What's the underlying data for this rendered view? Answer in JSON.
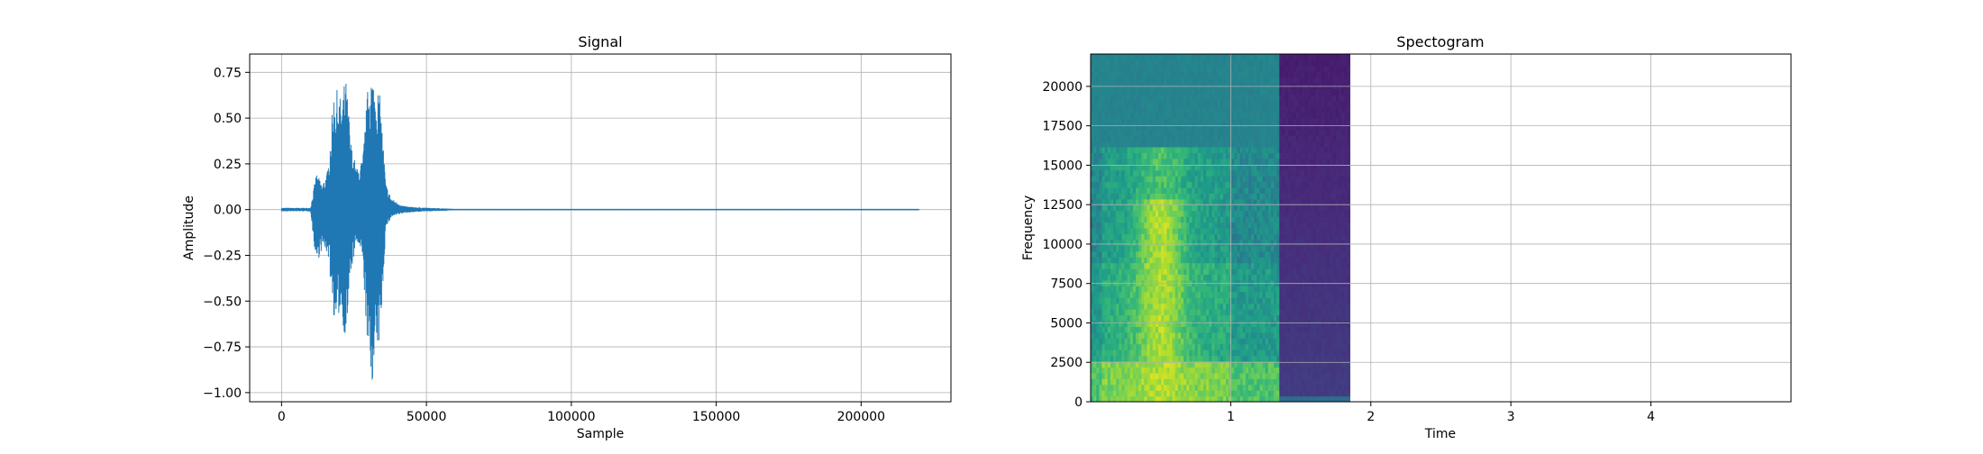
{
  "chart_data": [
    {
      "type": "line",
      "title": "Signal",
      "xlabel": "Sample",
      "ylabel": "Amplitude",
      "xlim": [
        -11000,
        231000
      ],
      "ylim": [
        -1.05,
        0.85
      ],
      "grid": true,
      "xticks": [
        0,
        50000,
        100000,
        150000,
        200000
      ],
      "xtick_labels": [
        "0",
        "50000",
        "100000",
        "150000",
        "200000"
      ],
      "yticks": [
        -1.0,
        -0.75,
        -0.5,
        -0.25,
        0.0,
        0.25,
        0.5,
        0.75
      ],
      "ytick_labels": [
        "−1.00",
        "−0.75",
        "−0.50",
        "−0.25",
        "0.00",
        "0.25",
        "0.50",
        "0.75"
      ],
      "series": [
        {
          "color": "#1f77b4",
          "x": [
            0,
            10000,
            12000,
            14000,
            16000,
            18000,
            19000,
            20000,
            21000,
            22000,
            23000,
            24000,
            26000,
            28000,
            30000,
            31000,
            32000,
            33000,
            34000,
            36000,
            38000,
            40000,
            42000,
            45000,
            50000,
            55000,
            60000,
            220000
          ],
          "y_max": [
            0.01,
            0.01,
            0.2,
            0.14,
            0.22,
            0.64,
            0.66,
            0.62,
            0.6,
            0.74,
            0.58,
            0.36,
            0.22,
            0.28,
            0.72,
            0.76,
            0.7,
            0.68,
            0.62,
            0.14,
            0.06,
            0.04,
            0.02,
            0.015,
            0.01,
            0.008,
            0.003,
            0.003
          ],
          "y_min": [
            -0.01,
            -0.01,
            -0.3,
            -0.22,
            -0.24,
            -0.58,
            -0.66,
            -0.56,
            -0.6,
            -0.72,
            -0.58,
            -0.34,
            -0.18,
            -0.28,
            -0.86,
            -0.96,
            -0.9,
            -0.78,
            -0.72,
            -0.1,
            -0.04,
            -0.03,
            -0.02,
            -0.015,
            -0.01,
            -0.008,
            -0.003,
            -0.003
          ]
        }
      ]
    },
    {
      "type": "heatmap",
      "title": "Spectogram",
      "xlabel": "Time",
      "ylabel": "Frequency",
      "xlim": [
        0,
        5
      ],
      "ylim": [
        0,
        22050
      ],
      "grid": true,
      "colormap": "viridis",
      "xticks": [
        1,
        2,
        3,
        4
      ],
      "xtick_labels": [
        "1",
        "2",
        "3",
        "4"
      ],
      "yticks": [
        0,
        2500,
        5000,
        7500,
        10000,
        12500,
        15000,
        17500,
        20000
      ],
      "ytick_labels": [
        "0",
        "2500",
        "5000",
        "7500",
        "10000",
        "12500",
        "15000",
        "17500",
        "20000"
      ],
      "time_extent": [
        0,
        1.85
      ],
      "freq_extent": [
        0,
        22050
      ],
      "levels": {
        "speech_low_band": 0.8,
        "speech_mid_band": 0.62,
        "speech_high_band": 0.55,
        "band_above_16k": 0.45,
        "silence_tail": 0.18,
        "silence_tail_low": 0.35,
        "speech_core": 0.88
      }
    }
  ]
}
